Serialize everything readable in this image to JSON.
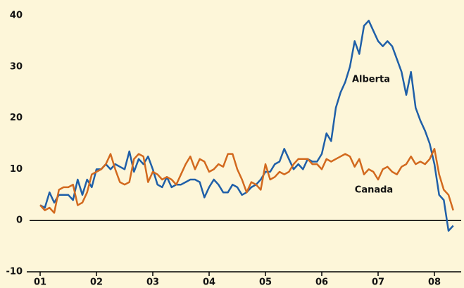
{
  "chart_data": {
    "type": "line",
    "categories": [
      "01",
      null,
      null,
      null,
      null,
      null,
      null,
      null,
      null,
      null,
      null,
      null,
      "02",
      null,
      null,
      null,
      null,
      null,
      null,
      null,
      null,
      null,
      null,
      null,
      "03",
      null,
      null,
      null,
      null,
      null,
      null,
      null,
      null,
      null,
      null,
      null,
      "04",
      null,
      null,
      null,
      null,
      null,
      null,
      null,
      null,
      null,
      null,
      null,
      "05",
      null,
      null,
      null,
      null,
      null,
      null,
      null,
      null,
      null,
      null,
      null,
      "06",
      null,
      null,
      null,
      null,
      null,
      null,
      null,
      null,
      null,
      null,
      null,
      "07",
      null,
      null,
      null,
      null,
      null,
      null,
      null,
      null,
      null,
      null,
      null,
      "08",
      null,
      null,
      null,
      null
    ],
    "series": [
      {
        "name": "Alberta",
        "color": "#1f5fa8",
        "values": [
          3,
          2.5,
          5.5,
          3.5,
          5,
          5,
          5,
          4,
          8,
          5,
          8,
          6.5,
          10,
          10,
          11,
          10,
          11,
          10.5,
          10,
          13.5,
          9.5,
          12,
          11,
          12.5,
          10,
          7,
          6.5,
          8.5,
          6.5,
          7,
          7,
          7.5,
          8,
          8,
          7.5,
          4.5,
          6.5,
          8,
          7,
          5.5,
          5.5,
          7,
          6.5,
          5,
          5.5,
          6.5,
          7,
          8,
          9.5,
          9.5,
          11,
          11.5,
          14,
          12,
          10,
          11,
          10,
          12,
          11.5,
          11.5,
          13,
          17,
          15.5,
          22,
          25,
          27,
          30,
          35,
          32.5,
          38,
          39,
          37,
          35,
          34,
          35,
          34,
          31.5,
          29,
          24.5,
          29,
          22,
          19.5,
          17.5,
          15,
          11,
          5,
          4,
          -2,
          -1
        ]
      },
      {
        "name": "Canada",
        "color": "#d2691e",
        "values": [
          3,
          2,
          2.5,
          1.5,
          6,
          6.5,
          6.5,
          7,
          3,
          3.5,
          5.5,
          9,
          9.5,
          10,
          11,
          13,
          10,
          7.5,
          7,
          7.5,
          12,
          13,
          12.5,
          7.5,
          9.5,
          9,
          8,
          8.5,
          8,
          7,
          9,
          11,
          12.5,
          10,
          12,
          11.5,
          9.5,
          10,
          11,
          10.5,
          13,
          13,
          10,
          8,
          5.5,
          7.5,
          7,
          6,
          11,
          8,
          8.5,
          9.5,
          9,
          9.5,
          11,
          12,
          12,
          12,
          11,
          11,
          10,
          12,
          11.5,
          12,
          12.5,
          13,
          12.5,
          10.5,
          12,
          9,
          10,
          9.5,
          8,
          10,
          10.5,
          9.5,
          9,
          10.5,
          11,
          12.5,
          11,
          11.5,
          11,
          12,
          14,
          9,
          6,
          5,
          2
        ]
      }
    ],
    "ylim": [
      -10,
      40
    ],
    "yticks": [
      -10,
      0,
      10,
      20,
      30,
      40
    ]
  }
}
